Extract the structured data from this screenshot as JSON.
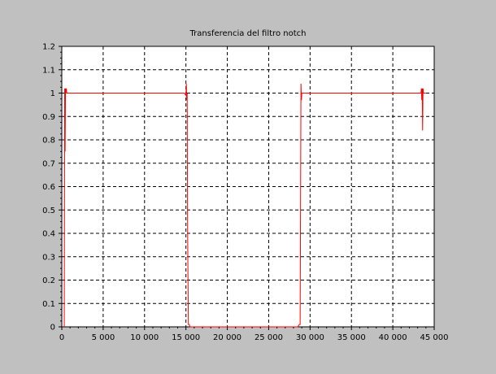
{
  "chart_data": {
    "type": "line",
    "title": "Transferencia del filtro notch",
    "xlabel": "",
    "ylabel": "",
    "xlim": [
      0,
      45000
    ],
    "ylim": [
      0,
      1.2
    ],
    "x_ticks": [
      0,
      5000,
      10000,
      15000,
      20000,
      25000,
      30000,
      35000,
      40000,
      45000
    ],
    "x_tick_labels": [
      "0",
      "5 000",
      "10 000",
      "15 000",
      "20 000",
      "25 000",
      "30 000",
      "35 000",
      "40 000",
      "45 000"
    ],
    "y_ticks": [
      0,
      0.1,
      0.2,
      0.3,
      0.4,
      0.5,
      0.6,
      0.7,
      0.8,
      0.9,
      1,
      1.1,
      1.2
    ],
    "y_tick_labels": [
      "0",
      "0.1",
      "0.2",
      "0.3",
      "0.4",
      "0.5",
      "0.6",
      "0.7",
      "0.8",
      "0.9",
      "1",
      "1.1",
      "1.2"
    ],
    "grid": true,
    "series_color": "#ff0000",
    "series": [
      {
        "x": [
          300,
          350,
          400,
          450,
          500,
          550,
          600,
          700,
          800,
          1000,
          2000,
          5000,
          10000,
          14000,
          14800,
          15000,
          15050,
          15100,
          15150,
          15200,
          15250,
          15300,
          15400,
          15500,
          15600,
          16000,
          20000,
          25000,
          28000,
          28500,
          28700,
          28800,
          28850,
          28900,
          28950,
          29000,
          29100,
          29200,
          29500,
          30000,
          35000,
          40000,
          43000,
          43300,
          43400,
          43450,
          43500,
          43550,
          43600,
          43650,
          43700,
          43800,
          44000
        ],
        "y": [
          0,
          1.02,
          0.75,
          1.02,
          1.0,
          1.02,
          1.0,
          1.0,
          1.0,
          1.0,
          1.0,
          1.0,
          1.0,
          1.0,
          1.0,
          0.99,
          1.04,
          0.97,
          1.0,
          0.44,
          0.2,
          0.01,
          0.01,
          0.0,
          0.0,
          0.0,
          0.0,
          0.0,
          0.0,
          0.0,
          0.01,
          0.01,
          0.5,
          1.04,
          0.97,
          1.0,
          1.0,
          1.0,
          1.0,
          1.0,
          1.0,
          1.0,
          1.0,
          1.0,
          1.0,
          1.02,
          0.97,
          1.02,
          0.84,
          1.02,
          1.0,
          1.0,
          1.0
        ]
      }
    ]
  }
}
